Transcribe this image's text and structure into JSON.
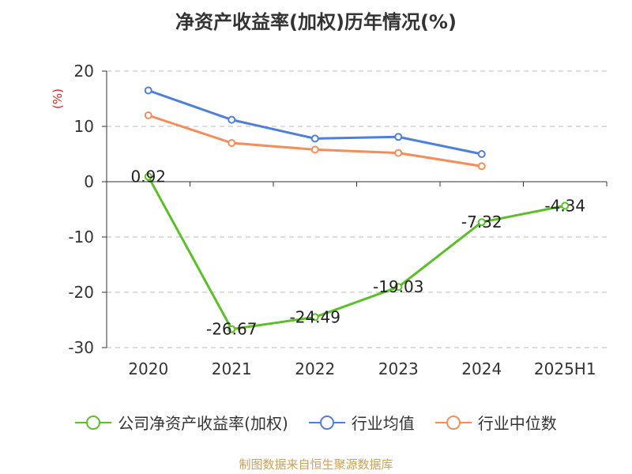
{
  "chart_data": {
    "type": "line",
    "title": "净资产收益率(加权)历年情况(%)",
    "ylabel": "(%)",
    "categories": [
      "2020",
      "2021",
      "2022",
      "2023",
      "2024",
      "2025H1"
    ],
    "yticks": [
      "20",
      "10",
      "0",
      "-10",
      "-20",
      "-30"
    ],
    "ylim": [
      -30,
      20
    ],
    "grid": "dashed horizontal",
    "legend_position": "bottom",
    "series": [
      {
        "name": "公司净资产收益率(加权)",
        "color": "#5cbf2a",
        "values": [
          0.92,
          -26.67,
          -24.49,
          -19.03,
          -7.32,
          -4.34
        ],
        "labels": [
          "0.92",
          "-26.67",
          "-24.49",
          "-19.03",
          "-7.32",
          "-4.34"
        ]
      },
      {
        "name": "行业均值",
        "color": "#4e7fd9",
        "values": [
          16.5,
          11.2,
          7.8,
          8.1,
          5.0,
          null
        ]
      },
      {
        "name": "行业中位数",
        "color": "#f58d5a",
        "values": [
          12.0,
          7.0,
          5.8,
          5.2,
          2.8,
          null
        ]
      }
    ]
  },
  "source": "制图数据来自恒生聚源数据库"
}
